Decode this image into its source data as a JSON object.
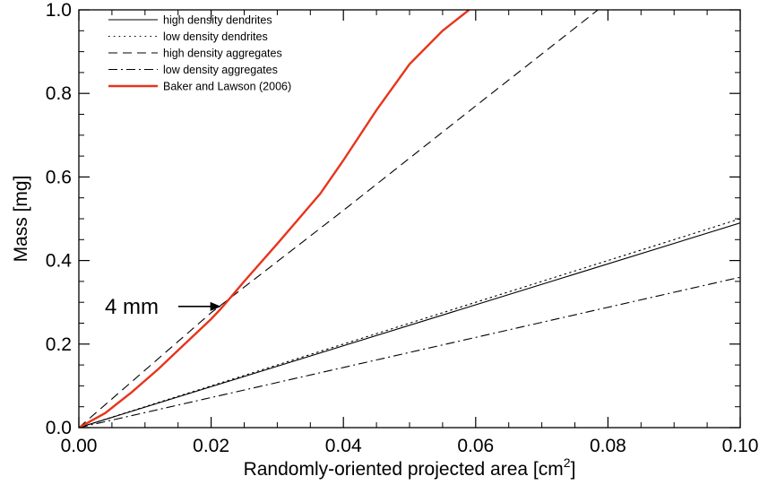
{
  "chart_data": {
    "type": "line",
    "title": "",
    "xlabel": "Randomly-oriented projected area [cm",
    "xlabel_superscript": "2",
    "xlabel_suffix": "]",
    "ylabel": "Mass [mg]",
    "xlim": [
      0.0,
      0.1
    ],
    "ylim": [
      0.0,
      1.0
    ],
    "x_ticks": [
      "0.00",
      "0.02",
      "0.04",
      "0.06",
      "0.08",
      "0.10"
    ],
    "y_ticks": [
      "0.0",
      "0.2",
      "0.4",
      "0.6",
      "0.8",
      "1.0"
    ],
    "grid": false,
    "legend_position": "top-left",
    "series": [
      {
        "name": "high density dendrites",
        "style": "solid",
        "color": "#000000",
        "x": [
          0.0,
          0.1
        ],
        "y": [
          0.0,
          0.49
        ]
      },
      {
        "name": "low density dendrites",
        "style": "dotted",
        "color": "#000000",
        "x": [
          0.0,
          0.1
        ],
        "y": [
          0.0,
          0.5
        ]
      },
      {
        "name": "high density aggregates",
        "style": "dashed",
        "color": "#000000",
        "x": [
          0.0,
          0.02,
          0.04,
          0.06,
          0.0785
        ],
        "y": [
          0.0,
          0.275,
          0.52,
          0.77,
          1.0
        ]
      },
      {
        "name": "low density aggregates",
        "style": "dashdot",
        "color": "#000000",
        "x": [
          0.0,
          0.1
        ],
        "y": [
          0.0,
          0.36
        ]
      },
      {
        "name": "Baker and Lawson (2006)",
        "style": "solid",
        "color": "#e8341c",
        "x": [
          0.0,
          0.004,
          0.008,
          0.012,
          0.016,
          0.02,
          0.0215,
          0.025,
          0.03,
          0.0365,
          0.04,
          0.045,
          0.05,
          0.055,
          0.059
        ],
        "y": [
          0.0,
          0.035,
          0.085,
          0.14,
          0.2,
          0.26,
          0.285,
          0.35,
          0.44,
          0.56,
          0.64,
          0.76,
          0.87,
          0.95,
          1.0
        ]
      }
    ],
    "annotations": [
      {
        "text": "4 mm",
        "arrow_to": {
          "x": 0.0215,
          "y": 0.29
        }
      }
    ]
  }
}
